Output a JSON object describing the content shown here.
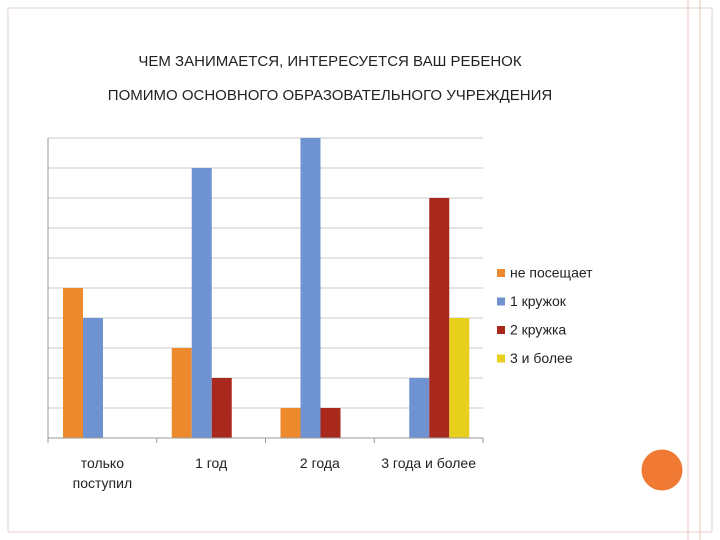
{
  "chart_data": {
    "type": "bar",
    "title": [
      "ЧЕМ ЗАНИМАЕТСЯ, ИНТЕРЕСУЕТСЯ ВАШ РЕБЕНОК",
      "ПОМИМО ОСНОВНОГО ОБРАЗОВАТЕЛЬНОГО УЧРЕЖДЕНИЯ"
    ],
    "categories": [
      "только поступил",
      "1 год",
      "2 года",
      "3 года и более"
    ],
    "series": [
      {
        "name": "не посещает",
        "color": "#ee8a2e",
        "values": [
          5,
          3,
          1,
          0
        ]
      },
      {
        "name": "1 кружок",
        "color": "#6f93d0",
        "values": [
          4,
          9,
          10,
          2
        ]
      },
      {
        "name": "2 кружка",
        "color": "#a8281e",
        "values": [
          0,
          2,
          1,
          8
        ]
      },
      {
        "name": "3 и более",
        "color": "#e6d01c",
        "values": [
          0,
          0,
          0,
          4
        ]
      }
    ],
    "ylim": [
      0,
      10
    ],
    "yticks": [
      0,
      1,
      2,
      3,
      4,
      5,
      6,
      7,
      8,
      9,
      10
    ],
    "grid": true,
    "legend": "right"
  }
}
